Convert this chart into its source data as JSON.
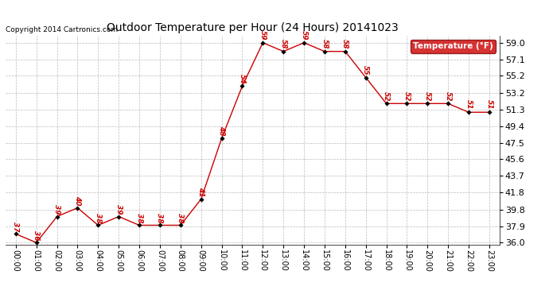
{
  "title": "Outdoor Temperature per Hour (24 Hours) 20141023",
  "copyright": "Copyright 2014 Cartronics.com",
  "hours": [
    "00:00",
    "01:00",
    "02:00",
    "03:00",
    "04:00",
    "05:00",
    "06:00",
    "07:00",
    "08:00",
    "09:00",
    "10:00",
    "11:00",
    "12:00",
    "13:00",
    "14:00",
    "15:00",
    "16:00",
    "17:00",
    "18:00",
    "19:00",
    "20:00",
    "21:00",
    "22:00",
    "23:00"
  ],
  "temperatures": [
    37,
    36,
    39,
    40,
    38,
    39,
    38,
    38,
    38,
    41,
    48,
    54,
    59,
    58,
    59,
    58,
    58,
    55,
    52,
    52,
    52,
    52,
    51,
    51
  ],
  "line_color": "#cc0000",
  "marker_color": "#000000",
  "label_color": "#cc0000",
  "legend_label": "Temperature (°F)",
  "legend_bg": "#cc0000",
  "legend_text_color": "#ffffff",
  "bg_color": "#ffffff",
  "grid_color": "#bbbbbb",
  "title_color": "#000000",
  "copyright_color": "#000000",
  "ymin": 36.0,
  "ymax": 59.0,
  "yticks": [
    36.0,
    37.9,
    39.8,
    41.8,
    43.7,
    45.6,
    47.5,
    49.4,
    51.3,
    53.2,
    55.2,
    57.1,
    59.0
  ]
}
